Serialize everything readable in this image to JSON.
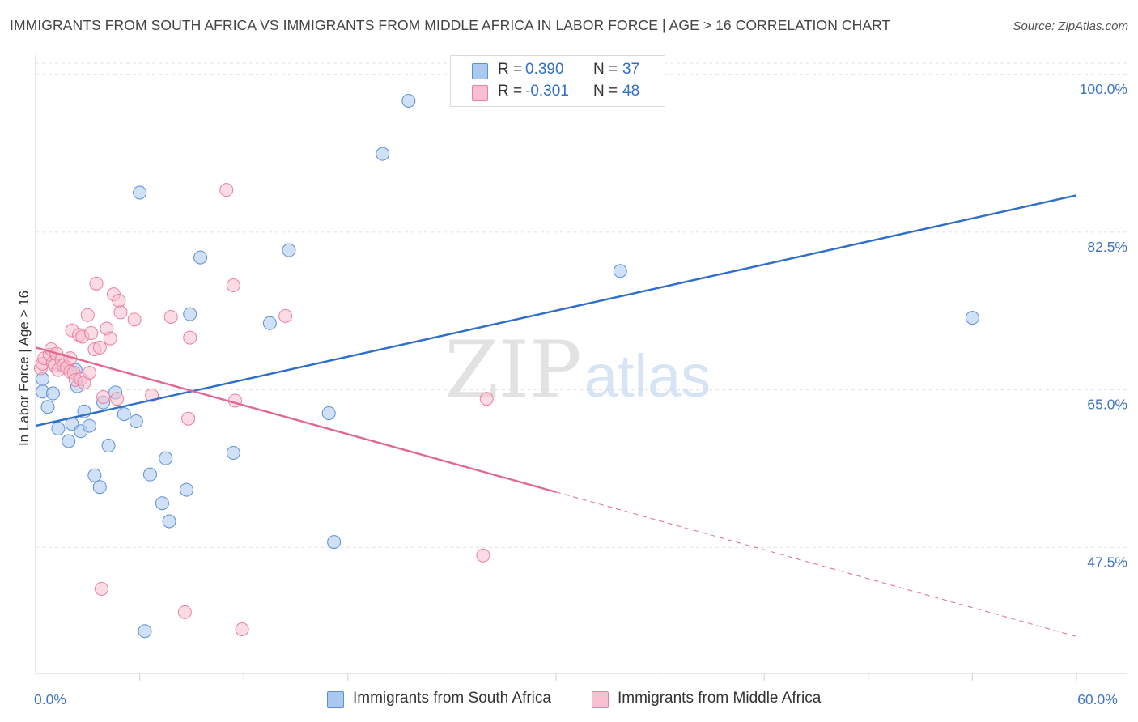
{
  "title": "IMMIGRANTS FROM SOUTH AFRICA VS IMMIGRANTS FROM MIDDLE AFRICA IN LABOR FORCE | AGE > 16 CORRELATION CHART",
  "source": "Source: ZipAtlas.com",
  "watermark": {
    "zip": "ZIP",
    "atlas": "atlas"
  },
  "legend": {
    "series": [
      {
        "swatch_color": "#aac8f0",
        "r_label": "R =",
        "r_value": "0.390",
        "n_label": "N =",
        "n_value": "37"
      },
      {
        "swatch_color": "#f7bfd0",
        "r_label": "R =",
        "r_value": "-0.301",
        "n_label": "N =",
        "n_value": "48"
      }
    ]
  },
  "chart_data": {
    "type": "scatter",
    "ylabel": "In Labor Force | Age > 16",
    "xlim": [
      0,
      60
    ],
    "ylim": [
      33.5,
      102
    ],
    "y_ticks": [
      {
        "value": 100,
        "label": "100.0%"
      },
      {
        "value": 82.5,
        "label": "82.5%"
      },
      {
        "value": 65,
        "label": "65.0%"
      },
      {
        "value": 47.5,
        "label": "47.5%"
      }
    ],
    "x_tick_labels": [
      {
        "value": 0,
        "label": "0.0%"
      },
      {
        "value": 60,
        "label": "60.0%"
      }
    ],
    "x_minor_ticks": [
      6,
      12,
      18,
      24,
      30,
      36,
      42,
      48,
      54,
      60
    ],
    "grid": "horizontal dashed",
    "series": [
      {
        "name": "Immigrants from South Africa",
        "color": "#5b8fd6",
        "fill": "#aac8f0",
        "line_color": "#2f6fc8",
        "trend": {
          "x": [
            0,
            60
          ],
          "y": [
            61.0,
            86.6
          ],
          "dashed_from": null
        },
        "points": [
          [
            0.4,
            66.2
          ],
          [
            0.4,
            64.8
          ],
          [
            0.7,
            63.1
          ],
          [
            1.0,
            64.6
          ],
          [
            1.3,
            60.7
          ],
          [
            1.9,
            59.3
          ],
          [
            2.1,
            61.2
          ],
          [
            2.3,
            67.2
          ],
          [
            2.4,
            65.4
          ],
          [
            2.6,
            60.4
          ],
          [
            2.8,
            62.6
          ],
          [
            3.1,
            61.0
          ],
          [
            3.4,
            55.5
          ],
          [
            3.7,
            54.2
          ],
          [
            3.9,
            63.6
          ],
          [
            4.2,
            58.8
          ],
          [
            4.6,
            64.7
          ],
          [
            5.1,
            62.3
          ],
          [
            5.8,
            61.5
          ],
          [
            6.0,
            86.9
          ],
          [
            6.3,
            38.2
          ],
          [
            6.6,
            55.6
          ],
          [
            7.3,
            52.4
          ],
          [
            7.5,
            57.4
          ],
          [
            7.7,
            50.4
          ],
          [
            8.7,
            53.9
          ],
          [
            8.9,
            73.4
          ],
          [
            9.5,
            79.7
          ],
          [
            11.4,
            58.0
          ],
          [
            13.5,
            72.4
          ],
          [
            14.6,
            80.5
          ],
          [
            16.9,
            62.4
          ],
          [
            17.2,
            48.1
          ],
          [
            20.0,
            91.2
          ],
          [
            21.5,
            97.1
          ],
          [
            33.7,
            78.2
          ],
          [
            54.0,
            73.0
          ]
        ]
      },
      {
        "name": "Immigrants from Middle Africa",
        "color": "#e8809f",
        "fill": "#f7bfd0",
        "line_color": "#e26890",
        "trend": {
          "x": [
            0,
            60
          ],
          "y": [
            69.7,
            37.6
          ],
          "dashed_from": 30
        },
        "points": [
          [
            0.3,
            67.4
          ],
          [
            0.4,
            67.9
          ],
          [
            0.5,
            68.5
          ],
          [
            0.8,
            68.9
          ],
          [
            0.9,
            69.5
          ],
          [
            1.0,
            68.0
          ],
          [
            1.1,
            67.7
          ],
          [
            1.2,
            69.0
          ],
          [
            1.3,
            67.2
          ],
          [
            1.5,
            68.3
          ],
          [
            1.6,
            67.7
          ],
          [
            1.8,
            67.5
          ],
          [
            2.0,
            68.5
          ],
          [
            2.0,
            67.0
          ],
          [
            2.1,
            71.6
          ],
          [
            2.2,
            66.9
          ],
          [
            2.3,
            66.1
          ],
          [
            2.5,
            71.1
          ],
          [
            2.6,
            66.2
          ],
          [
            2.7,
            70.9
          ],
          [
            2.8,
            65.8
          ],
          [
            3.0,
            73.3
          ],
          [
            3.1,
            66.9
          ],
          [
            3.2,
            71.3
          ],
          [
            3.4,
            69.5
          ],
          [
            3.5,
            76.8
          ],
          [
            3.7,
            69.7
          ],
          [
            3.8,
            42.9
          ],
          [
            3.9,
            64.2
          ],
          [
            4.1,
            71.8
          ],
          [
            4.3,
            70.7
          ],
          [
            4.5,
            75.6
          ],
          [
            4.7,
            64.0
          ],
          [
            4.8,
            74.9
          ],
          [
            4.9,
            73.6
          ],
          [
            5.7,
            72.8
          ],
          [
            6.7,
            64.4
          ],
          [
            7.8,
            73.1
          ],
          [
            8.6,
            40.3
          ],
          [
            8.8,
            61.8
          ],
          [
            8.9,
            70.8
          ],
          [
            11.0,
            87.2
          ],
          [
            11.4,
            76.6
          ],
          [
            11.5,
            63.8
          ],
          [
            11.9,
            38.4
          ],
          [
            14.4,
            73.2
          ],
          [
            25.8,
            46.6
          ],
          [
            26.0,
            64.0
          ]
        ]
      }
    ]
  }
}
